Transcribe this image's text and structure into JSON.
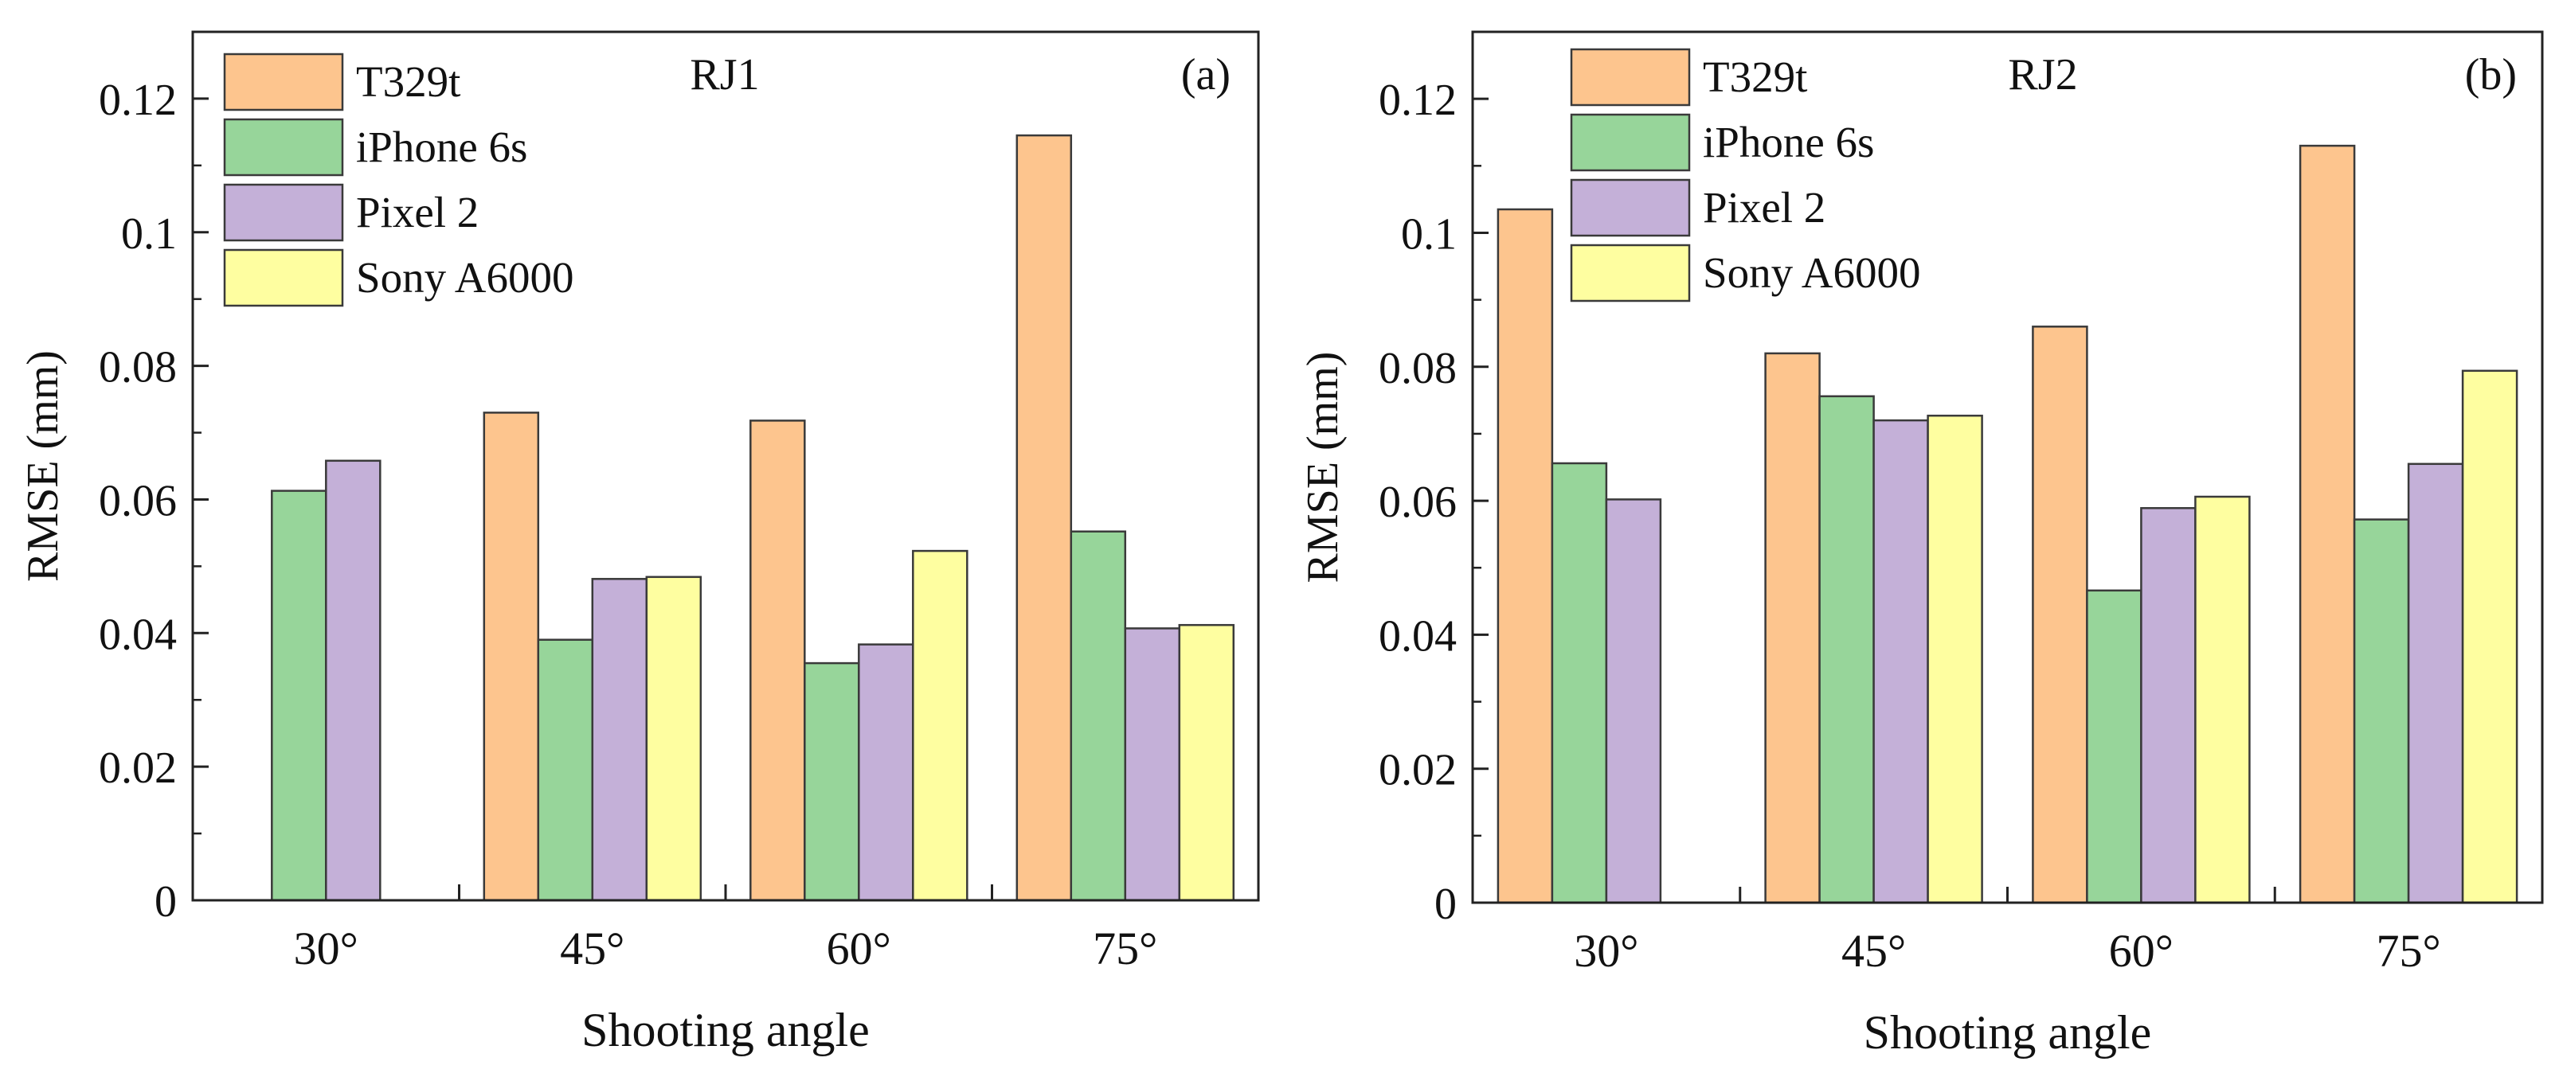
{
  "chart_data": [
    {
      "type": "bar",
      "panel_label": "(a)",
      "title": "RJ1",
      "xlabel": "Shooting angle",
      "ylabel": "RMSE (mm)",
      "ylim": [
        0,
        0.13
      ],
      "yticks": [
        0,
        0.02,
        0.04,
        0.06,
        0.08,
        0.1,
        0.12
      ],
      "ytick_labels": [
        "0",
        "0.02",
        "0.04",
        "0.06",
        "0.08",
        "0.1",
        "0.12"
      ],
      "categories": [
        "30°",
        "45°",
        "60°",
        "75°"
      ],
      "legend_position": "top-left",
      "series": [
        {
          "name": "T329t",
          "color": "#FDC58E",
          "values": [
            null,
            0.073,
            0.0718,
            0.1145
          ]
        },
        {
          "name": "iPhone 6s",
          "color": "#97D59A",
          "values": [
            0.0613,
            0.039,
            0.0355,
            0.0552
          ]
        },
        {
          "name": "Pixel 2",
          "color": "#C4B0D8",
          "values": [
            0.0658,
            0.0481,
            0.0383,
            0.0407
          ]
        },
        {
          "name": "Sony A6000",
          "color": "#FEFEA0",
          "values": [
            null,
            0.0484,
            0.0523,
            0.0412
          ]
        }
      ]
    },
    {
      "type": "bar",
      "panel_label": "(b)",
      "title": "RJ2",
      "xlabel": "Shooting angle",
      "ylabel": "RMSE (mm)",
      "ylim": [
        0,
        0.13
      ],
      "yticks": [
        0,
        0.02,
        0.04,
        0.06,
        0.08,
        0.1,
        0.12
      ],
      "ytick_labels": [
        "0",
        "0.02",
        "0.04",
        "0.06",
        "0.08",
        "0.1",
        "0.12"
      ],
      "categories": [
        "30°",
        "45°",
        "60°",
        "75°"
      ],
      "legend_position": "top-left",
      "series": [
        {
          "name": "T329t",
          "color": "#FDC58E",
          "values": [
            0.1035,
            0.082,
            0.086,
            0.113
          ]
        },
        {
          "name": "iPhone 6s",
          "color": "#97D59A",
          "values": [
            0.0656,
            0.0756,
            0.0466,
            0.0572
          ]
        },
        {
          "name": "Pixel 2",
          "color": "#C4B0D8",
          "values": [
            0.0602,
            0.072,
            0.0589,
            0.0655
          ]
        },
        {
          "name": "Sony A6000",
          "color": "#FEFEA0",
          "values": [
            null,
            0.0727,
            0.0606,
            0.0794
          ]
        }
      ]
    }
  ]
}
